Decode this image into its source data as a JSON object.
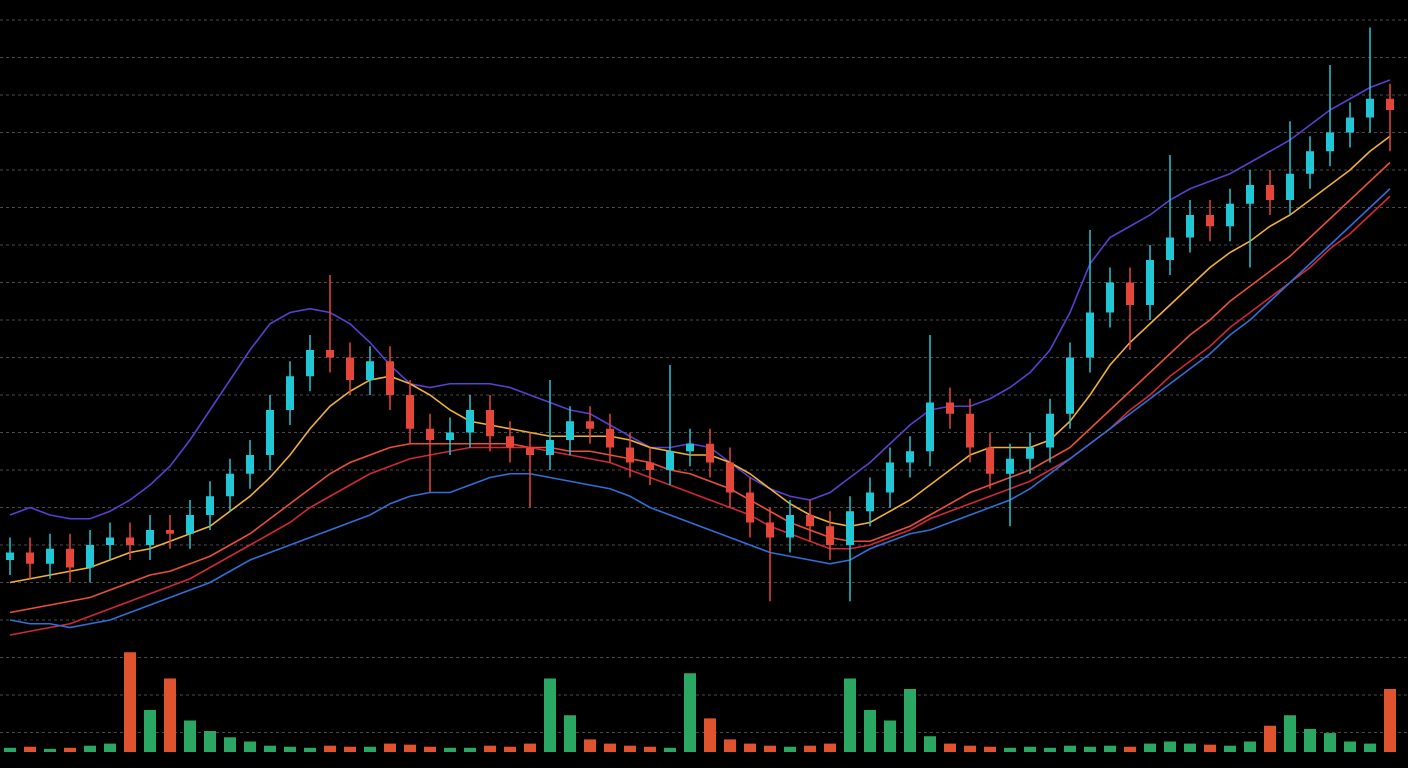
{
  "chart_data": {
    "type": "candlestick",
    "open": [
      5.6,
      5.8,
      5.5,
      5.9,
      5.4,
      6.0,
      6.2,
      6.0,
      6.4,
      6.3,
      6.8,
      7.3,
      7.9,
      8.4,
      9.6,
      10.5,
      11.2,
      11.0,
      10.4,
      10.9,
      10.0,
      9.1,
      8.8,
      9.0,
      9.6,
      8.9,
      8.6,
      8.4,
      8.8,
      9.3,
      9.1,
      8.6,
      8.2,
      8.0,
      8.5,
      8.7,
      8.2,
      7.4,
      6.6,
      6.2,
      6.8,
      6.5,
      6.0,
      6.9,
      7.4,
      8.2,
      8.5,
      9.8,
      9.5,
      8.6,
      7.9,
      8.3,
      8.6,
      9.5,
      11.0,
      12.2,
      13.0,
      12.4,
      13.6,
      14.2,
      14.8,
      14.5,
      15.1,
      15.6,
      15.2,
      15.9,
      16.5,
      17.0,
      17.4,
      17.9
    ],
    "high": [
      6.2,
      6.2,
      6.3,
      6.3,
      6.4,
      6.6,
      6.6,
      6.8,
      6.8,
      7.2,
      7.7,
      8.3,
      8.8,
      10.0,
      10.9,
      11.6,
      13.2,
      11.4,
      11.3,
      11.3,
      10.4,
      9.5,
      9.4,
      10.0,
      10.0,
      9.3,
      9.0,
      10.4,
      9.7,
      9.7,
      9.5,
      9.0,
      8.6,
      10.8,
      9.1,
      9.1,
      8.6,
      7.8,
      7.0,
      7.2,
      7.2,
      6.9,
      7.3,
      7.8,
      8.6,
      8.9,
      11.6,
      10.2,
      9.9,
      9.0,
      8.7,
      9.0,
      9.9,
      11.4,
      14.4,
      13.4,
      13.4,
      14.0,
      16.4,
      15.2,
      15.2,
      15.5,
      16.0,
      16.0,
      17.3,
      16.9,
      18.8,
      17.8,
      19.8,
      18.3
    ],
    "low": [
      5.2,
      5.1,
      5.1,
      5.0,
      5.0,
      5.6,
      5.6,
      5.6,
      5.9,
      5.9,
      6.4,
      6.9,
      7.5,
      8.0,
      9.2,
      10.1,
      10.6,
      10.0,
      10.0,
      9.6,
      8.7,
      7.4,
      8.4,
      8.6,
      8.5,
      8.2,
      7.0,
      8.0,
      8.4,
      8.7,
      8.2,
      7.8,
      7.6,
      7.6,
      8.1,
      7.8,
      7.0,
      6.2,
      4.5,
      5.8,
      6.1,
      5.6,
      4.5,
      6.5,
      7.0,
      7.8,
      8.1,
      9.1,
      8.2,
      7.5,
      6.5,
      7.9,
      8.2,
      9.1,
      10.6,
      11.8,
      11.2,
      12.0,
      13.2,
      13.8,
      14.1,
      14.1,
      13.4,
      14.8,
      14.8,
      15.5,
      16.1,
      16.6,
      17.0,
      16.5
    ],
    "close": [
      5.8,
      5.5,
      5.9,
      5.4,
      6.0,
      6.2,
      6.0,
      6.4,
      6.3,
      6.8,
      7.3,
      7.9,
      8.4,
      9.6,
      10.5,
      11.2,
      11.0,
      10.4,
      10.9,
      10.0,
      9.1,
      8.8,
      9.0,
      9.6,
      8.9,
      8.6,
      8.4,
      8.8,
      9.3,
      9.1,
      8.6,
      8.2,
      8.0,
      8.5,
      8.7,
      8.2,
      7.4,
      6.6,
      6.2,
      6.8,
      6.5,
      6.0,
      6.9,
      7.4,
      8.2,
      8.5,
      9.8,
      9.5,
      8.6,
      7.9,
      8.3,
      8.6,
      9.5,
      11.0,
      12.2,
      13.0,
      12.4,
      13.6,
      14.2,
      14.8,
      14.5,
      15.1,
      15.6,
      15.2,
      15.9,
      16.5,
      17.0,
      17.4,
      17.9,
      17.6
    ],
    "volume": [
      4,
      5,
      3,
      4,
      6,
      8,
      95,
      40,
      70,
      30,
      20,
      14,
      10,
      6,
      5,
      4,
      6,
      5,
      5,
      8,
      7,
      5,
      4,
      4,
      6,
      5,
      8,
      70,
      35,
      12,
      8,
      6,
      5,
      4,
      75,
      32,
      12,
      8,
      6,
      5,
      6,
      8,
      70,
      40,
      30,
      60,
      15,
      8,
      6,
      5,
      4,
      5,
      4,
      6,
      5,
      6,
      5,
      8,
      10,
      8,
      7,
      6,
      10,
      25,
      35,
      22,
      18,
      10,
      8,
      60
    ],
    "up_color": "#22c7d6",
    "down_color": "#e5463a",
    "volume_up_color": "#2aa863",
    "volume_down_color": "#e0532f",
    "series": [
      {
        "color": "#5a3fd0",
        "values": [
          6.8,
          7.0,
          6.8,
          6.7,
          6.7,
          6.9,
          7.2,
          7.6,
          8.1,
          8.8,
          9.6,
          10.4,
          11.2,
          11.9,
          12.2,
          12.3,
          12.2,
          11.9,
          11.4,
          10.8,
          10.3,
          10.2,
          10.3,
          10.3,
          10.3,
          10.2,
          10.0,
          9.8,
          9.6,
          9.5,
          9.2,
          8.9,
          8.6,
          8.6,
          8.7,
          8.6,
          8.2,
          7.8,
          7.5,
          7.3,
          7.2,
          7.4,
          7.8,
          8.2,
          8.7,
          9.2,
          9.6,
          9.7,
          9.7,
          9.9,
          10.2,
          10.6,
          11.2,
          12.2,
          13.5,
          14.2,
          14.5,
          14.8,
          15.2,
          15.5,
          15.7,
          15.9,
          16.2,
          16.5,
          16.8,
          17.2,
          17.6,
          17.9,
          18.2,
          18.4
        ]
      },
      {
        "color": "#f2b134",
        "values": [
          5.0,
          5.1,
          5.2,
          5.3,
          5.4,
          5.6,
          5.8,
          5.9,
          6.1,
          6.3,
          6.5,
          6.9,
          7.3,
          7.8,
          8.4,
          9.1,
          9.7,
          10.1,
          10.4,
          10.5,
          10.3,
          10.0,
          9.6,
          9.3,
          9.2,
          9.1,
          9.0,
          8.9,
          8.9,
          8.9,
          8.9,
          8.8,
          8.6,
          8.5,
          8.4,
          8.4,
          8.2,
          7.9,
          7.5,
          7.1,
          6.8,
          6.6,
          6.5,
          6.6,
          6.9,
          7.2,
          7.6,
          8.0,
          8.4,
          8.6,
          8.6,
          8.6,
          8.8,
          9.3,
          10.0,
          10.8,
          11.4,
          11.9,
          12.4,
          12.9,
          13.4,
          13.8,
          14.1,
          14.5,
          14.8,
          15.2,
          15.6,
          16.0,
          16.5,
          16.9
        ]
      },
      {
        "color": "#e8503a",
        "values": [
          4.2,
          4.3,
          4.4,
          4.5,
          4.6,
          4.8,
          5.0,
          5.2,
          5.3,
          5.5,
          5.7,
          6.0,
          6.3,
          6.7,
          7.1,
          7.5,
          7.9,
          8.2,
          8.4,
          8.6,
          8.7,
          8.7,
          8.7,
          8.7,
          8.7,
          8.7,
          8.6,
          8.6,
          8.5,
          8.5,
          8.4,
          8.3,
          8.2,
          8.0,
          7.9,
          7.7,
          7.5,
          7.2,
          6.9,
          6.6,
          6.4,
          6.2,
          6.1,
          6.1,
          6.3,
          6.5,
          6.8,
          7.1,
          7.4,
          7.6,
          7.8,
          8.0,
          8.3,
          8.6,
          9.1,
          9.6,
          10.1,
          10.6,
          11.1,
          11.6,
          12.0,
          12.5,
          12.9,
          13.3,
          13.7,
          14.2,
          14.7,
          15.2,
          15.7,
          16.2
        ]
      },
      {
        "color": "#d0283a",
        "values": [
          3.6,
          3.7,
          3.8,
          3.9,
          4.1,
          4.3,
          4.5,
          4.7,
          4.9,
          5.1,
          5.4,
          5.7,
          6.0,
          6.3,
          6.6,
          7.0,
          7.3,
          7.6,
          7.9,
          8.1,
          8.3,
          8.4,
          8.5,
          8.6,
          8.6,
          8.6,
          8.6,
          8.5,
          8.4,
          8.3,
          8.2,
          8.0,
          7.8,
          7.6,
          7.4,
          7.2,
          7.0,
          6.8,
          6.5,
          6.3,
          6.1,
          5.9,
          5.9,
          6.0,
          6.2,
          6.4,
          6.7,
          6.9,
          7.1,
          7.3,
          7.5,
          7.7,
          8.0,
          8.3,
          8.7,
          9.1,
          9.6,
          10.0,
          10.5,
          10.9,
          11.3,
          11.8,
          12.2,
          12.6,
          13.0,
          13.4,
          13.9,
          14.3,
          14.8,
          15.3
        ]
      },
      {
        "color": "#2f6fd6",
        "values": [
          4.0,
          3.9,
          3.9,
          3.8,
          3.9,
          4.0,
          4.2,
          4.4,
          4.6,
          4.8,
          5.0,
          5.3,
          5.6,
          5.8,
          6.0,
          6.2,
          6.4,
          6.6,
          6.8,
          7.1,
          7.3,
          7.4,
          7.4,
          7.6,
          7.8,
          7.9,
          7.9,
          7.8,
          7.7,
          7.6,
          7.5,
          7.3,
          7.0,
          6.8,
          6.6,
          6.4,
          6.2,
          6.0,
          5.8,
          5.7,
          5.6,
          5.5,
          5.6,
          5.9,
          6.1,
          6.3,
          6.4,
          6.6,
          6.8,
          7.0,
          7.2,
          7.5,
          7.9,
          8.3,
          8.7,
          9.1,
          9.5,
          9.9,
          10.3,
          10.7,
          11.1,
          11.6,
          12.0,
          12.5,
          13.0,
          13.5,
          14.0,
          14.5,
          15.0,
          15.5
        ]
      }
    ],
    "ylim": [
      0,
      20
    ],
    "yticks": [
      1,
      2,
      3,
      4,
      5,
      6,
      7,
      8,
      9,
      10,
      11,
      12,
      13,
      14,
      15,
      16,
      17,
      18,
      19,
      20
    ],
    "volume_ylim": [
      0,
      100
    ],
    "grid": true
  }
}
